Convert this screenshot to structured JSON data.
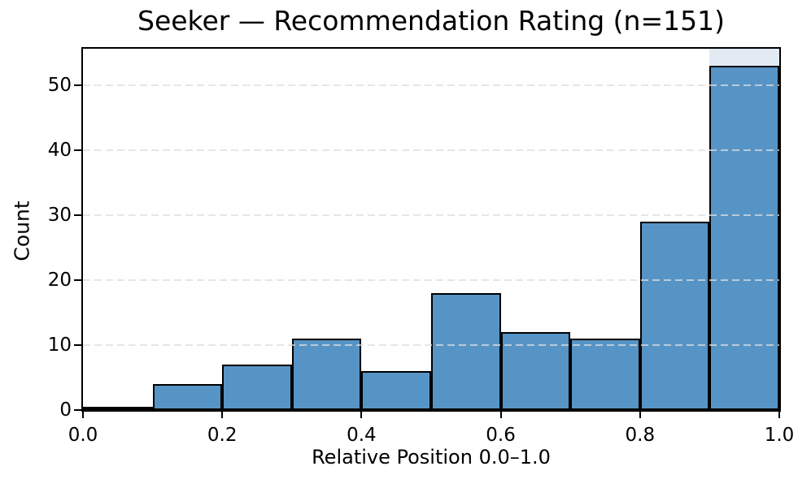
{
  "chart_data": {
    "type": "bar",
    "subtype": "histogram",
    "title": "Seeker — Recommendation Rating (n=151)",
    "xlabel": "Relative Position 0.0–1.0",
    "ylabel": "Count",
    "n_total": 151,
    "bin_edges": [
      0.0,
      0.1,
      0.2,
      0.3,
      0.4,
      0.5,
      0.6,
      0.7,
      0.8,
      0.9,
      1.0
    ],
    "counts": [
      0,
      4,
      7,
      11,
      6,
      18,
      12,
      11,
      29,
      53
    ],
    "xlim": [
      0.0,
      1.0
    ],
    "ylim": [
      0,
      55.65
    ],
    "xticks": [
      {
        "value": 0.0,
        "label": "0.0"
      },
      {
        "value": 0.2,
        "label": "0.2"
      },
      {
        "value": 0.4,
        "label": "0.4"
      },
      {
        "value": 0.6,
        "label": "0.6"
      },
      {
        "value": 0.8,
        "label": "0.8"
      },
      {
        "value": 1.0,
        "label": "1.0"
      }
    ],
    "yticks": [
      {
        "value": 0,
        "label": "0"
      },
      {
        "value": 10,
        "label": "10"
      },
      {
        "value": 20,
        "label": "20"
      },
      {
        "value": 30,
        "label": "30"
      },
      {
        "value": 40,
        "label": "40"
      },
      {
        "value": 50,
        "label": "50"
      }
    ],
    "grid": {
      "axis": "y",
      "style": "dashed",
      "on": true
    },
    "legend": "none",
    "highlight_span": {
      "x0": 0.9,
      "x1": 1.0,
      "color": "#e2ebf4"
    },
    "colors": {
      "bar_fill": "#5794c6",
      "bar_edge": "#000000",
      "grid_line": "#dddddd",
      "spine": "#000000",
      "text": "#000000",
      "background": "#ffffff"
    }
  }
}
